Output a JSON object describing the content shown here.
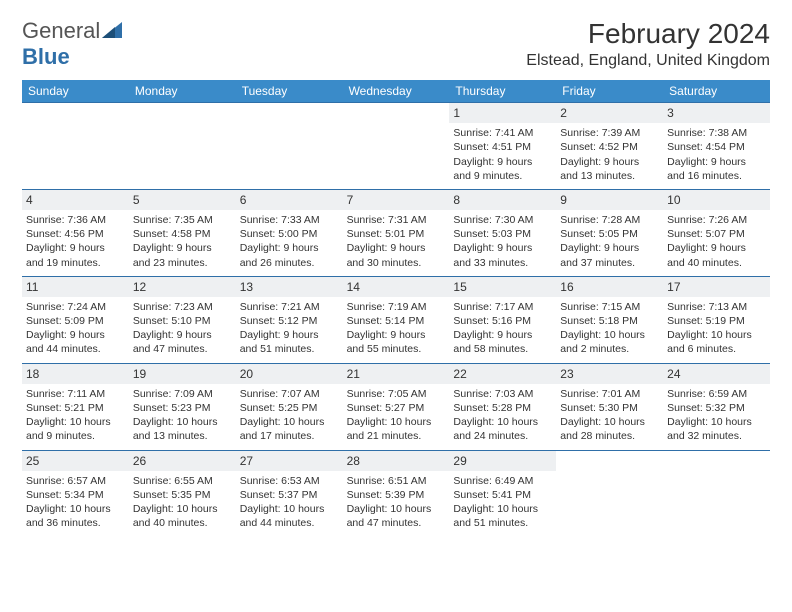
{
  "brand": {
    "part1": "General",
    "part2": "Blue"
  },
  "title": "February 2024",
  "location": "Elstead, England, United Kingdom",
  "colors": {
    "header_bg": "#3a8bc9",
    "border": "#2f6fa8",
    "daynum_bg": "#eef0f2",
    "text": "#333333",
    "white": "#ffffff"
  },
  "typography": {
    "title_fontsize": 28,
    "location_fontsize": 16,
    "dow_fontsize": 12,
    "cell_fontsize": 10.5,
    "daynum_fontsize": 12
  },
  "layout": {
    "columns": 7,
    "rows": 6,
    "leading_empty": 4,
    "trailing_empty": 2
  },
  "dow": [
    "Sunday",
    "Monday",
    "Tuesday",
    "Wednesday",
    "Thursday",
    "Friday",
    "Saturday"
  ],
  "days": [
    {
      "n": "1",
      "sr": "7:41 AM",
      "ss": "4:51 PM",
      "dl": "9 hours and 9 minutes."
    },
    {
      "n": "2",
      "sr": "7:39 AM",
      "ss": "4:52 PM",
      "dl": "9 hours and 13 minutes."
    },
    {
      "n": "3",
      "sr": "7:38 AM",
      "ss": "4:54 PM",
      "dl": "9 hours and 16 minutes."
    },
    {
      "n": "4",
      "sr": "7:36 AM",
      "ss": "4:56 PM",
      "dl": "9 hours and 19 minutes."
    },
    {
      "n": "5",
      "sr": "7:35 AM",
      "ss": "4:58 PM",
      "dl": "9 hours and 23 minutes."
    },
    {
      "n": "6",
      "sr": "7:33 AM",
      "ss": "5:00 PM",
      "dl": "9 hours and 26 minutes."
    },
    {
      "n": "7",
      "sr": "7:31 AM",
      "ss": "5:01 PM",
      "dl": "9 hours and 30 minutes."
    },
    {
      "n": "8",
      "sr": "7:30 AM",
      "ss": "5:03 PM",
      "dl": "9 hours and 33 minutes."
    },
    {
      "n": "9",
      "sr": "7:28 AM",
      "ss": "5:05 PM",
      "dl": "9 hours and 37 minutes."
    },
    {
      "n": "10",
      "sr": "7:26 AM",
      "ss": "5:07 PM",
      "dl": "9 hours and 40 minutes."
    },
    {
      "n": "11",
      "sr": "7:24 AM",
      "ss": "5:09 PM",
      "dl": "9 hours and 44 minutes."
    },
    {
      "n": "12",
      "sr": "7:23 AM",
      "ss": "5:10 PM",
      "dl": "9 hours and 47 minutes."
    },
    {
      "n": "13",
      "sr": "7:21 AM",
      "ss": "5:12 PM",
      "dl": "9 hours and 51 minutes."
    },
    {
      "n": "14",
      "sr": "7:19 AM",
      "ss": "5:14 PM",
      "dl": "9 hours and 55 minutes."
    },
    {
      "n": "15",
      "sr": "7:17 AM",
      "ss": "5:16 PM",
      "dl": "9 hours and 58 minutes."
    },
    {
      "n": "16",
      "sr": "7:15 AM",
      "ss": "5:18 PM",
      "dl": "10 hours and 2 minutes."
    },
    {
      "n": "17",
      "sr": "7:13 AM",
      "ss": "5:19 PM",
      "dl": "10 hours and 6 minutes."
    },
    {
      "n": "18",
      "sr": "7:11 AM",
      "ss": "5:21 PM",
      "dl": "10 hours and 9 minutes."
    },
    {
      "n": "19",
      "sr": "7:09 AM",
      "ss": "5:23 PM",
      "dl": "10 hours and 13 minutes."
    },
    {
      "n": "20",
      "sr": "7:07 AM",
      "ss": "5:25 PM",
      "dl": "10 hours and 17 minutes."
    },
    {
      "n": "21",
      "sr": "7:05 AM",
      "ss": "5:27 PM",
      "dl": "10 hours and 21 minutes."
    },
    {
      "n": "22",
      "sr": "7:03 AM",
      "ss": "5:28 PM",
      "dl": "10 hours and 24 minutes."
    },
    {
      "n": "23",
      "sr": "7:01 AM",
      "ss": "5:30 PM",
      "dl": "10 hours and 28 minutes."
    },
    {
      "n": "24",
      "sr": "6:59 AM",
      "ss": "5:32 PM",
      "dl": "10 hours and 32 minutes."
    },
    {
      "n": "25",
      "sr": "6:57 AM",
      "ss": "5:34 PM",
      "dl": "10 hours and 36 minutes."
    },
    {
      "n": "26",
      "sr": "6:55 AM",
      "ss": "5:35 PM",
      "dl": "10 hours and 40 minutes."
    },
    {
      "n": "27",
      "sr": "6:53 AM",
      "ss": "5:37 PM",
      "dl": "10 hours and 44 minutes."
    },
    {
      "n": "28",
      "sr": "6:51 AM",
      "ss": "5:39 PM",
      "dl": "10 hours and 47 minutes."
    },
    {
      "n": "29",
      "sr": "6:49 AM",
      "ss": "5:41 PM",
      "dl": "10 hours and 51 minutes."
    }
  ],
  "labels": {
    "sunrise_prefix": "Sunrise: ",
    "sunset_prefix": "Sunset: ",
    "daylight_prefix": "Daylight: "
  }
}
